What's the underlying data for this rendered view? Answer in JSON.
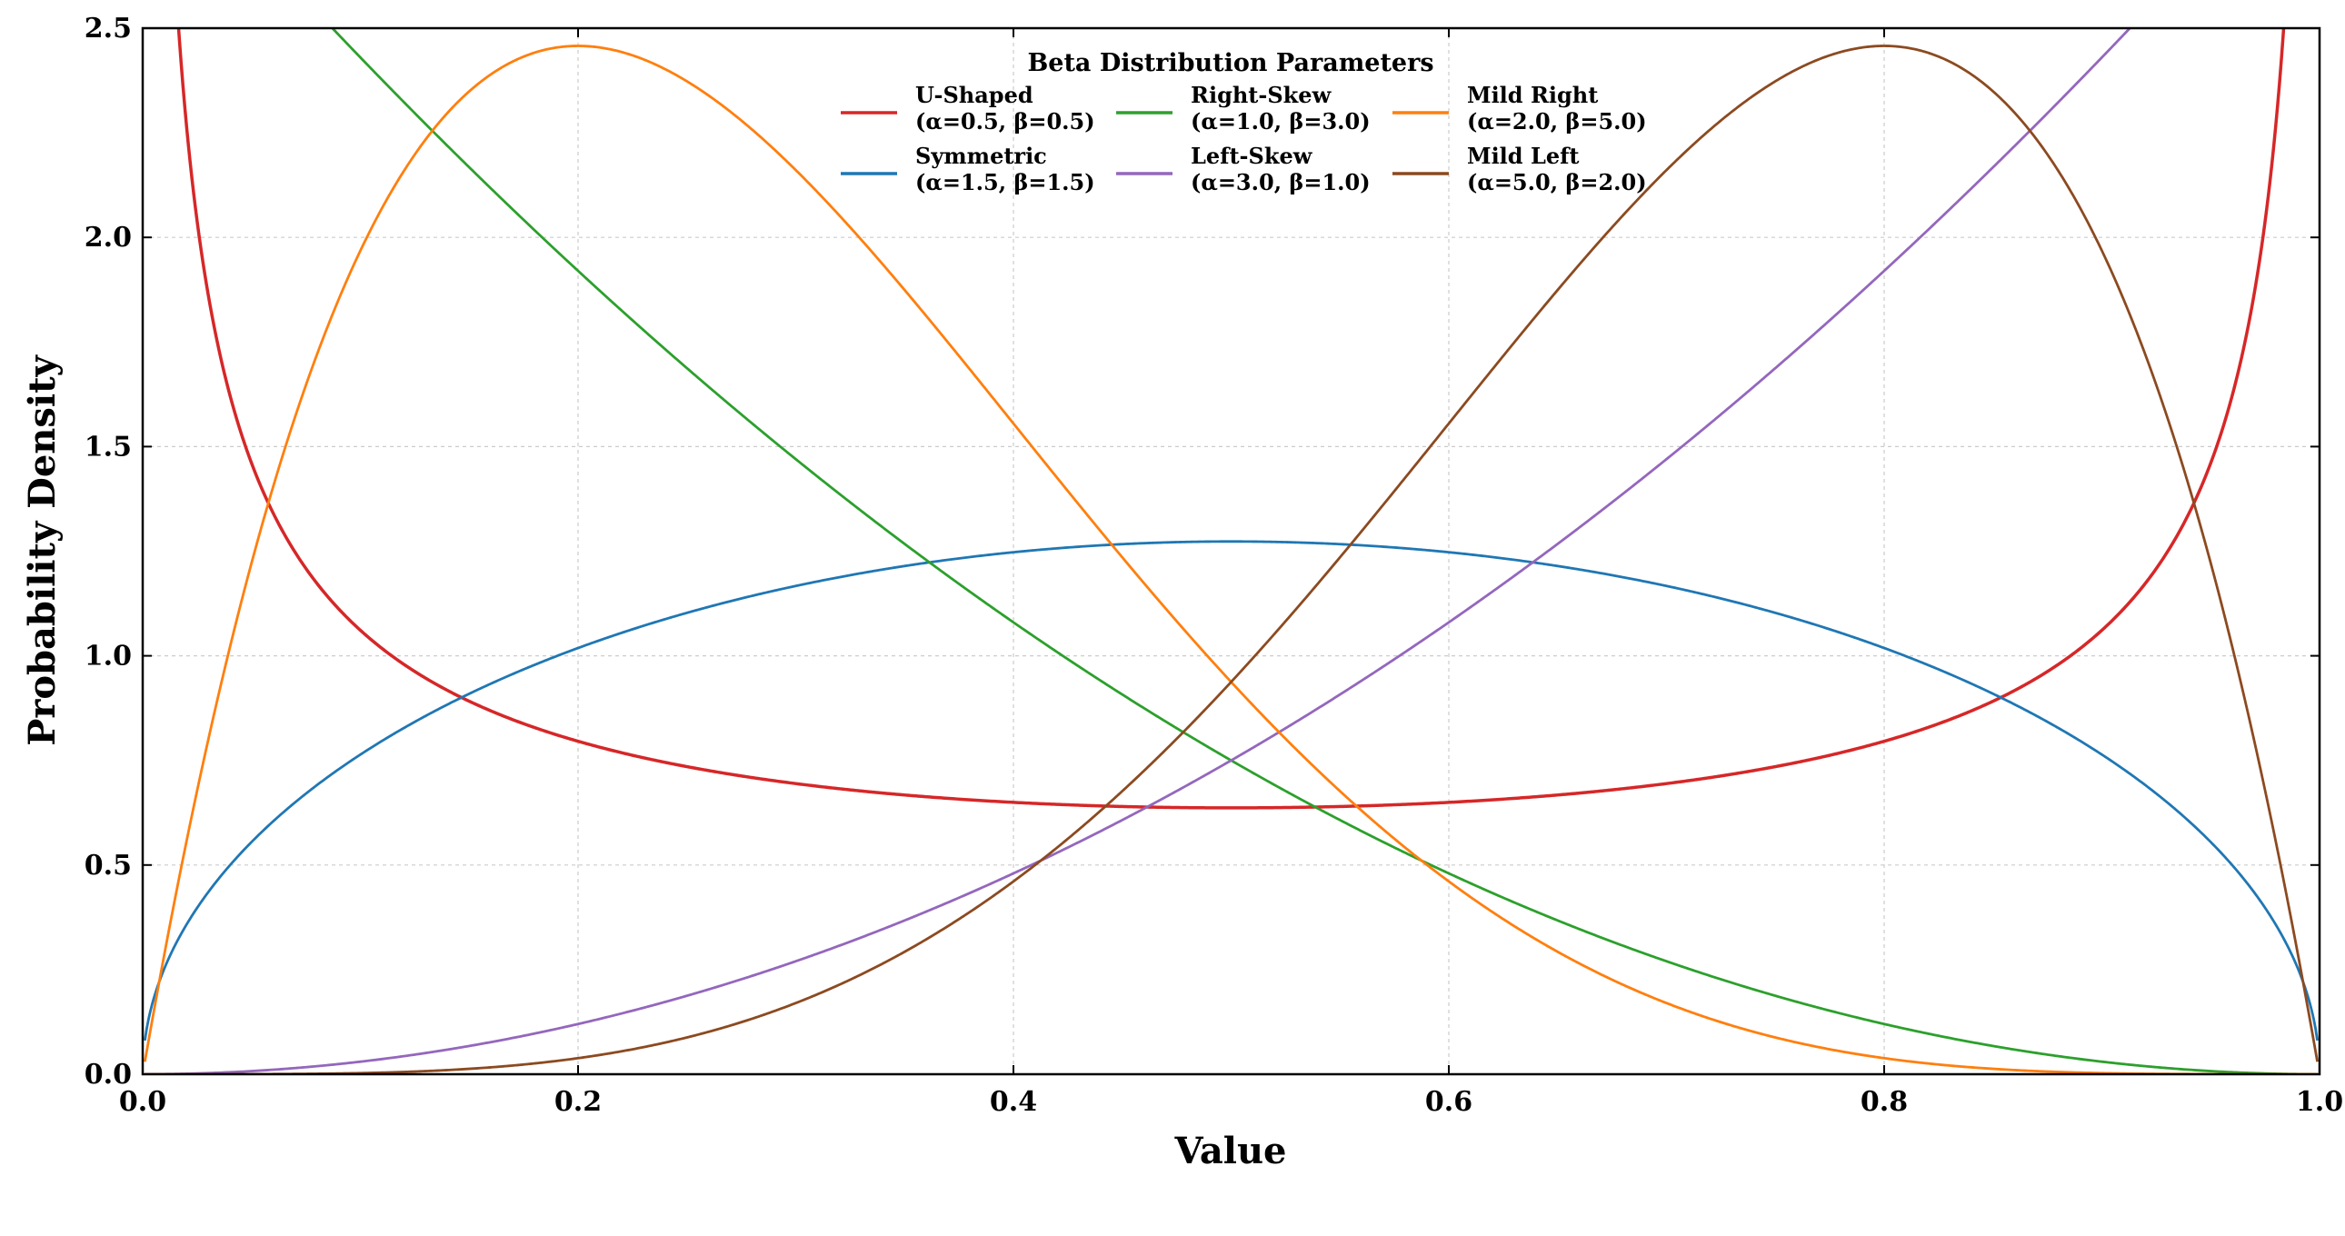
{
  "chart_data": {
    "type": "line",
    "title": "",
    "xlabel": "Value",
    "ylabel": "Probability Density",
    "xlim": [
      0.0,
      1.0
    ],
    "ylim": [
      0.0,
      2.5
    ],
    "xticks": [
      0.0,
      0.2,
      0.4,
      0.6,
      0.8,
      1.0
    ],
    "xtick_labels": [
      "0.0",
      "0.2",
      "0.4",
      "0.6",
      "0.8",
      "1.0"
    ],
    "yticks": [
      0.0,
      0.5,
      1.0,
      1.5,
      2.0,
      2.5
    ],
    "ytick_labels": [
      "0.0",
      "0.5",
      "1.0",
      "1.5",
      "2.0",
      "2.5"
    ],
    "grid": true,
    "legend": {
      "title": "Beta Distribution Parameters",
      "placement": "upper-center",
      "columns": 3
    },
    "series": [
      {
        "name": "U-Shaped",
        "params": "(α=0.5, β=0.5)",
        "alpha": 0.5,
        "beta": 0.5,
        "color": "#d62728"
      },
      {
        "name": "Symmetric",
        "params": "(α=1.5, β=1.5)",
        "alpha": 1.5,
        "beta": 1.5,
        "color": "#1f77b4"
      },
      {
        "name": "Right-Skew",
        "params": "(α=1.0, β=3.0)",
        "alpha": 1.0,
        "beta": 3.0,
        "color": "#2ca02c"
      },
      {
        "name": "Left-Skew",
        "params": "(α=3.0, β=1.0)",
        "alpha": 3.0,
        "beta": 1.0,
        "color": "#9467bd"
      },
      {
        "name": "Mild Right",
        "params": "(α=2.0, β=5.0)",
        "alpha": 2.0,
        "beta": 5.0,
        "color": "#ff7f0e"
      },
      {
        "name": "Mild Left",
        "params": "(α=5.0, β=2.0)",
        "alpha": 5.0,
        "beta": 2.0,
        "color": "#8c4a20"
      }
    ]
  }
}
